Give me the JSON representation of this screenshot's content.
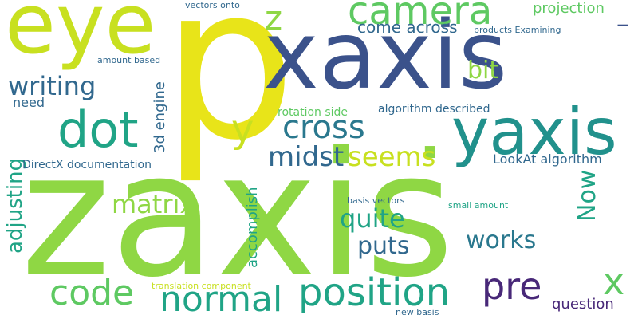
{
  "palette": {
    "light-green": "#8fd744",
    "yellow": "#e8e419",
    "yellow-green": "#c8e020",
    "green": "#5ec962",
    "teal": "#20a486",
    "dark-teal": "#21918c",
    "cyan-teal": "#2a788e",
    "slate-blue": "#31688e",
    "blue": "#3b528b",
    "indigo": "#414487",
    "purple": "#482878",
    "dark-purple": "#440154"
  },
  "words": [
    {
      "id": "zaxis",
      "text": "zaxis",
      "color": "#8fd744"
    },
    {
      "id": "p",
      "text": "p",
      "color": "#e8e419"
    },
    {
      "id": "xaxis",
      "text": "xaxis",
      "color": "#3b528b"
    },
    {
      "id": "eye",
      "text": "eye",
      "color": "#c8e020"
    },
    {
      "id": "yaxis",
      "text": "yaxis",
      "color": "#21918c"
    },
    {
      "id": "dot-center",
      "text": ".",
      "color": "#8fd744"
    },
    {
      "id": "dot",
      "text": "dot",
      "color": "#20a486"
    },
    {
      "id": "camera",
      "text": "camera",
      "color": "#5ec962"
    },
    {
      "id": "position",
      "text": "position",
      "color": "#20a486"
    },
    {
      "id": "normal",
      "text": "normal",
      "color": "#20a486"
    },
    {
      "id": "code",
      "text": "code",
      "color": "#5ec962"
    },
    {
      "id": "pre",
      "text": "pre",
      "color": "#482878"
    },
    {
      "id": "cross",
      "text": "cross",
      "color": "#2a788e"
    },
    {
      "id": "x-letter",
      "text": "x",
      "color": "#5ec962"
    },
    {
      "id": "y-letter",
      "text": "y",
      "color": "#c8e020"
    },
    {
      "id": "z-letter",
      "text": "z",
      "color": "#8fd744"
    },
    {
      "id": "midst",
      "text": "midst",
      "color": "#31688e"
    },
    {
      "id": "seems",
      "text": "seems",
      "color": "#c8e020"
    },
    {
      "id": "writing",
      "text": "writing",
      "color": "#31688e"
    },
    {
      "id": "matrix",
      "text": "matrix",
      "color": "#8fd744"
    },
    {
      "id": "quite",
      "text": "quite",
      "color": "#20a486"
    },
    {
      "id": "works",
      "text": "works",
      "color": "#2a788e"
    },
    {
      "id": "puts",
      "text": "puts",
      "color": "#31688e"
    },
    {
      "id": "now",
      "text": "Now",
      "color": "#20a486"
    },
    {
      "id": "bit",
      "text": "bit",
      "color": "#8fd744"
    },
    {
      "id": "adjusting",
      "text": "adjusting",
      "color": "#20a486"
    },
    {
      "id": "come-across",
      "text": "come across",
      "color": "#31688e"
    },
    {
      "id": "projection",
      "text": "projection",
      "color": "#5ec962"
    },
    {
      "id": "question",
      "text": "question",
      "color": "#482878"
    },
    {
      "id": "accomplish",
      "text": "accomplish",
      "color": "#20a486"
    },
    {
      "id": "engine-3d",
      "text": "3d engine",
      "color": "#31688e"
    },
    {
      "id": "lookat-algorithm",
      "text": "LookAt algorithm",
      "color": "#31688e"
    },
    {
      "id": "need",
      "text": "need",
      "color": "#31688e"
    },
    {
      "id": "algorithm-described",
      "text": "algorithm described",
      "color": "#31688e"
    },
    {
      "id": "rotation-side",
      "text": "rotation side",
      "color": "#5ec962"
    },
    {
      "id": "directx-documentation",
      "text": "DirectX documentation",
      "color": "#31688e"
    },
    {
      "id": "l-letter",
      "text": "l",
      "color": "#3b528b"
    },
    {
      "id": "vectors-onto",
      "text": "vectors onto",
      "color": "#31688e"
    },
    {
      "id": "products-examining",
      "text": "products Examining",
      "color": "#31688e"
    },
    {
      "id": "amount-based",
      "text": "amount based",
      "color": "#31688e"
    },
    {
      "id": "basis-vectors",
      "text": "basis vectors",
      "color": "#31688e"
    },
    {
      "id": "small-amount",
      "text": "small amount",
      "color": "#20a486"
    },
    {
      "id": "translation-component",
      "text": "translation component",
      "color": "#c8e020"
    },
    {
      "id": "new-basis",
      "text": "new basis",
      "color": "#31688e"
    }
  ]
}
